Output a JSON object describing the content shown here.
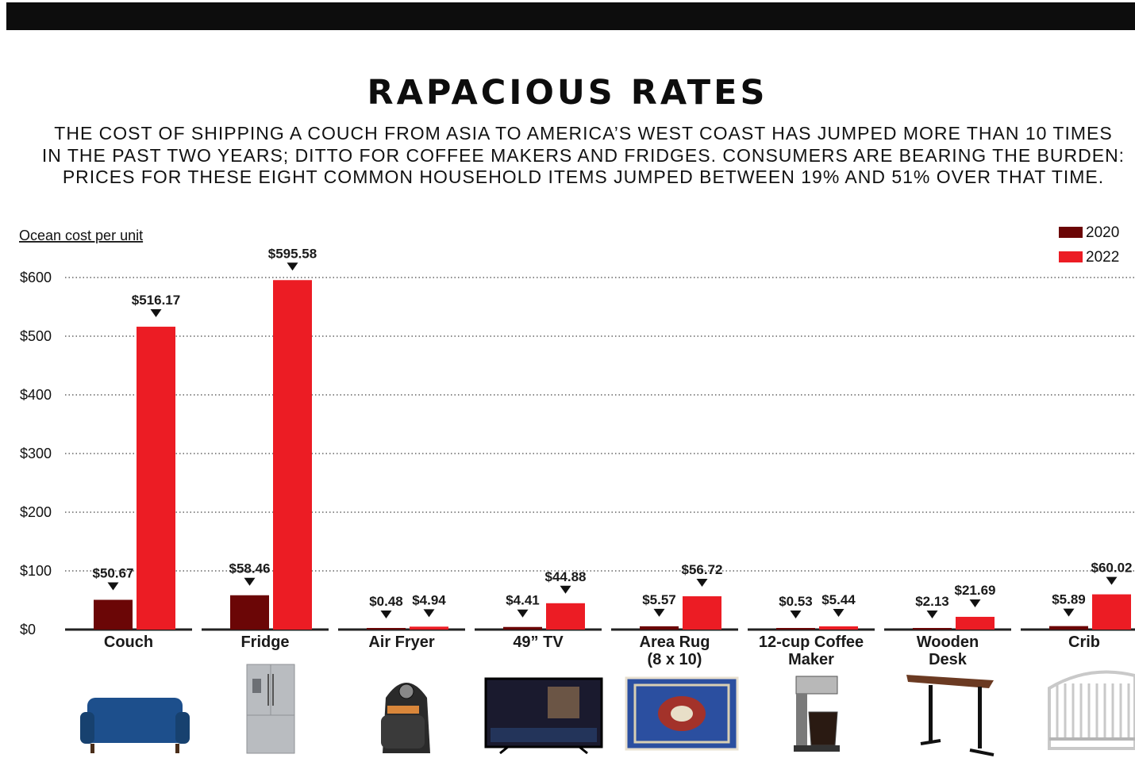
{
  "header": {
    "title": "RAPACIOUS RATES",
    "subtitle_lines": [
      "THE COST OF SHIPPING A COUCH FROM ASIA TO AMERICA’S WEST COAST HAS JUMPED MORE THAN 10 TIMES",
      "IN THE PAST TWO YEARS; DITTO FOR COFFEE MAKERS AND FRIDGES. CONSUMERS ARE BEARING THE BURDEN:",
      "PRICES FOR THESE EIGHT COMMON HOUSEHOLD ITEMS JUMPED BETWEEN 19% AND 51% OVER THAT TIME."
    ]
  },
  "chart_data": {
    "type": "bar",
    "title": "RAPACIOUS RATES",
    "ylabel": "Ocean cost per unit",
    "ylim": [
      0,
      600
    ],
    "yticks": [
      0,
      100,
      200,
      300,
      400,
      500,
      600
    ],
    "ytick_labels": [
      "$0",
      "$100",
      "$200",
      "$300",
      "$400",
      "$500",
      "$600"
    ],
    "grid": "horizontal dotted",
    "legend_position": "top-right",
    "categories": [
      [
        "Couch"
      ],
      [
        "Fridge"
      ],
      [
        "Air Fryer"
      ],
      [
        "49” TV"
      ],
      [
        "Area Rug",
        "(8 x 10)"
      ],
      [
        "12-cup Coffee",
        "Maker"
      ],
      [
        "Wooden",
        "Desk"
      ],
      [
        "Crib"
      ]
    ],
    "series": [
      {
        "name": "2020",
        "color": "#6b0606",
        "values": [
          50.67,
          58.46,
          0.48,
          4.41,
          5.57,
          0.53,
          2.13,
          5.89
        ],
        "labels": [
          "$50.67",
          "$58.46",
          "$0.48",
          "$4.41",
          "$5.57",
          "$0.53",
          "$2.13",
          "$5.89"
        ]
      },
      {
        "name": "2022",
        "color": "#ec1c24",
        "values": [
          516.17,
          595.58,
          4.94,
          44.88,
          56.72,
          5.44,
          21.69,
          60.02
        ],
        "labels": [
          "$516.17",
          "$595.58",
          "$4.94",
          "$44.88",
          "$56.72",
          "$5.44",
          "$21.69",
          "$60.02"
        ]
      }
    ]
  },
  "product_images": [
    {
      "icon": "couch-icon",
      "color": "#1d4f8c"
    },
    {
      "icon": "fridge-icon",
      "color": "#b9bcc0"
    },
    {
      "icon": "air-fryer-icon",
      "color": "#2a2a2a"
    },
    {
      "icon": "tv-icon",
      "color": "#1a1a2e"
    },
    {
      "icon": "area-rug-icon",
      "color": "#2b4fa0"
    },
    {
      "icon": "coffee-maker-icon",
      "color": "#7a7a7a"
    },
    {
      "icon": "wooden-desk-icon",
      "color": "#6b3a22"
    },
    {
      "icon": "crib-icon",
      "color": "#c9c9c9"
    }
  ]
}
